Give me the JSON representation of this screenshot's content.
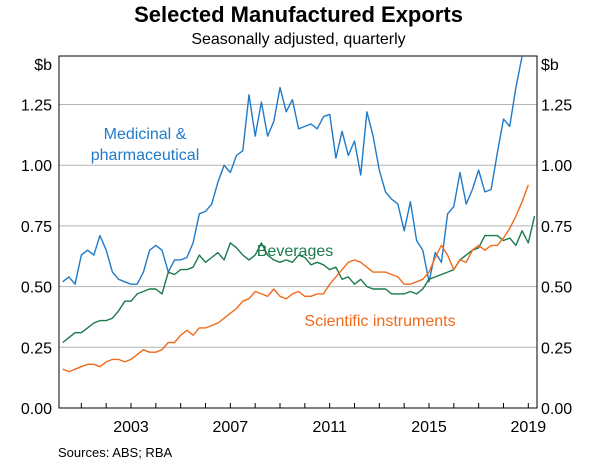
{
  "chart_data": {
    "type": "line",
    "title": "Selected Manufactured Exports",
    "subtitle": "Seasonally adjusted, quarterly",
    "ylabel_left": "$b",
    "ylabel_right": "$b",
    "ylim": [
      0,
      1.45
    ],
    "yticks": [
      0,
      0.25,
      0.5,
      0.75,
      1.0,
      1.25
    ],
    "ytick_labels": [
      "0.00",
      "0.25",
      "0.50",
      "0.75",
      "1.00",
      "1.25"
    ],
    "xlim": [
      2000.1,
      2019.35
    ],
    "xticks": [
      2003,
      2007,
      2011,
      2015,
      2019
    ],
    "xtick_labels": [
      "2003",
      "2007",
      "2011",
      "2015",
      "2019"
    ],
    "x_start": 2000.25,
    "x_step": 0.25,
    "grid": true,
    "source": "Sources:  ABS; RBA",
    "series": [
      {
        "name": "Medicinal & pharmaceutical",
        "label_lines": [
          "Medicinal &",
          "pharmaceutical"
        ],
        "color": "#1f7ac8",
        "values": [
          0.52,
          0.54,
          0.51,
          0.63,
          0.65,
          0.63,
          0.71,
          0.65,
          0.56,
          0.53,
          0.52,
          0.51,
          0.51,
          0.56,
          0.65,
          0.67,
          0.65,
          0.56,
          0.61,
          0.61,
          0.62,
          0.68,
          0.8,
          0.81,
          0.84,
          0.93,
          1.0,
          0.97,
          1.04,
          1.06,
          1.29,
          1.12,
          1.26,
          1.12,
          1.18,
          1.32,
          1.22,
          1.27,
          1.15,
          1.16,
          1.17,
          1.15,
          1.2,
          1.21,
          1.03,
          1.14,
          1.04,
          1.1,
          0.96,
          1.22,
          1.12,
          0.98,
          0.89,
          0.86,
          0.84,
          0.73,
          0.85,
          0.69,
          0.65,
          0.52,
          0.64,
          0.6,
          0.8,
          0.83,
          0.97,
          0.84,
          0.9,
          0.98,
          0.89,
          0.9,
          1.05,
          1.19,
          1.16,
          1.32,
          1.45
        ]
      },
      {
        "name": "Beverages",
        "label_lines": [
          "Beverages"
        ],
        "color": "#1a7a4c",
        "values": [
          0.27,
          0.29,
          0.31,
          0.31,
          0.33,
          0.35,
          0.36,
          0.36,
          0.37,
          0.4,
          0.44,
          0.44,
          0.47,
          0.48,
          0.49,
          0.49,
          0.47,
          0.56,
          0.55,
          0.57,
          0.57,
          0.58,
          0.63,
          0.6,
          0.62,
          0.64,
          0.61,
          0.68,
          0.66,
          0.63,
          0.61,
          0.63,
          0.68,
          0.63,
          0.61,
          0.6,
          0.61,
          0.6,
          0.63,
          0.62,
          0.59,
          0.6,
          0.59,
          0.57,
          0.58,
          0.53,
          0.54,
          0.51,
          0.53,
          0.5,
          0.49,
          0.49,
          0.49,
          0.47,
          0.47,
          0.47,
          0.48,
          0.47,
          0.49,
          0.53,
          0.54,
          0.55,
          0.56,
          0.57,
          0.61,
          0.63,
          0.65,
          0.66,
          0.71,
          0.71,
          0.71,
          0.69,
          0.7,
          0.67,
          0.73,
          0.68,
          0.79
        ]
      },
      {
        "name": "Scientific instruments",
        "label_lines": [
          "Scientific instruments"
        ],
        "color": "#f06a1c",
        "values": [
          0.16,
          0.15,
          0.16,
          0.17,
          0.18,
          0.18,
          0.17,
          0.19,
          0.2,
          0.2,
          0.19,
          0.2,
          0.22,
          0.24,
          0.23,
          0.23,
          0.24,
          0.27,
          0.27,
          0.3,
          0.32,
          0.3,
          0.33,
          0.33,
          0.34,
          0.35,
          0.37,
          0.39,
          0.41,
          0.44,
          0.45,
          0.48,
          0.47,
          0.46,
          0.49,
          0.46,
          0.45,
          0.47,
          0.48,
          0.46,
          0.46,
          0.47,
          0.47,
          0.51,
          0.54,
          0.57,
          0.6,
          0.61,
          0.6,
          0.58,
          0.56,
          0.56,
          0.56,
          0.55,
          0.54,
          0.51,
          0.51,
          0.52,
          0.53,
          0.56,
          0.62,
          0.67,
          0.63,
          0.57,
          0.61,
          0.6,
          0.65,
          0.67,
          0.65,
          0.67,
          0.67,
          0.7,
          0.74,
          0.79,
          0.85,
          0.92
        ]
      }
    ]
  }
}
